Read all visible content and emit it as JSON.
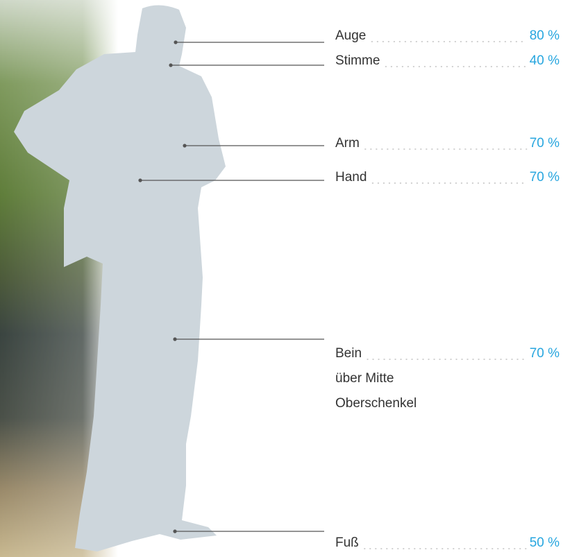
{
  "items": [
    {
      "label": "Auge",
      "value": "80 %"
    },
    {
      "label": "Stimme",
      "value": "40 %"
    },
    {
      "label": "Arm",
      "value": "70 %"
    },
    {
      "label": "Hand",
      "value": "70 %"
    },
    {
      "label": "Bein",
      "lines": [
        "über Mitte",
        "Oberschenkel"
      ],
      "value": "70 %"
    },
    {
      "label": "Fuß",
      "value": "50 %"
    }
  ]
}
